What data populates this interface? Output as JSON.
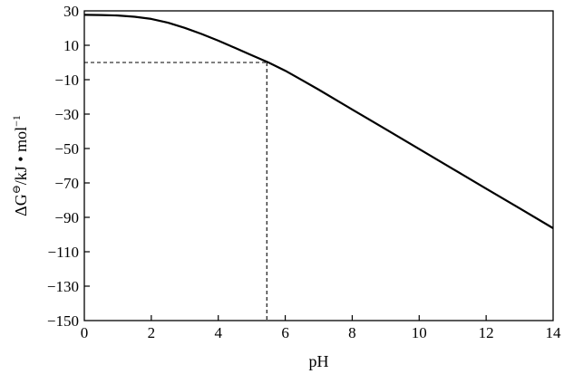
{
  "chart_data": {
    "type": "line",
    "xlabel": "pH",
    "ylabel": "ΔG",
    "ylabel_sup": "⊖",
    "ylabel_rest": "/kJ • mol",
    "ylabel_exp": "−1",
    "xlim": [
      0,
      14
    ],
    "ylim": [
      -150,
      30
    ],
    "x_ticks": [
      0,
      2,
      4,
      6,
      8,
      10,
      12,
      14
    ],
    "x_tick_labels": [
      "0",
      "2",
      "4",
      "6",
      "8",
      "10",
      "12",
      "14"
    ],
    "y_ticks": [
      30,
      10,
      -10,
      -30,
      -50,
      -70,
      -90,
      -110,
      -130,
      -150
    ],
    "y_tick_labels": [
      "30",
      "10",
      "−10",
      "−30",
      "−50",
      "−70",
      "−90",
      "−110",
      "−130",
      "−150"
    ],
    "grid": false,
    "series": [
      {
        "x": [
          0,
          0.5,
          1,
          1.5,
          2,
          2.5,
          3,
          3.5,
          4,
          4.5,
          5,
          5.5,
          6,
          6.5,
          7,
          8,
          9,
          10,
          11,
          12,
          13,
          14
        ],
        "y": [
          27.7,
          27.6,
          27.3,
          26.6,
          25.3,
          23.1,
          20.1,
          16.6,
          12.7,
          8.5,
          4.2,
          0,
          -4.8,
          -10.2,
          -15.8,
          -27.3,
          -38.8,
          -50.3,
          -61.8,
          -73.3,
          -84.8,
          -96.3
        ]
      }
    ],
    "annotations": [
      {
        "type": "guide",
        "x": 5.45,
        "y": 0
      }
    ]
  }
}
